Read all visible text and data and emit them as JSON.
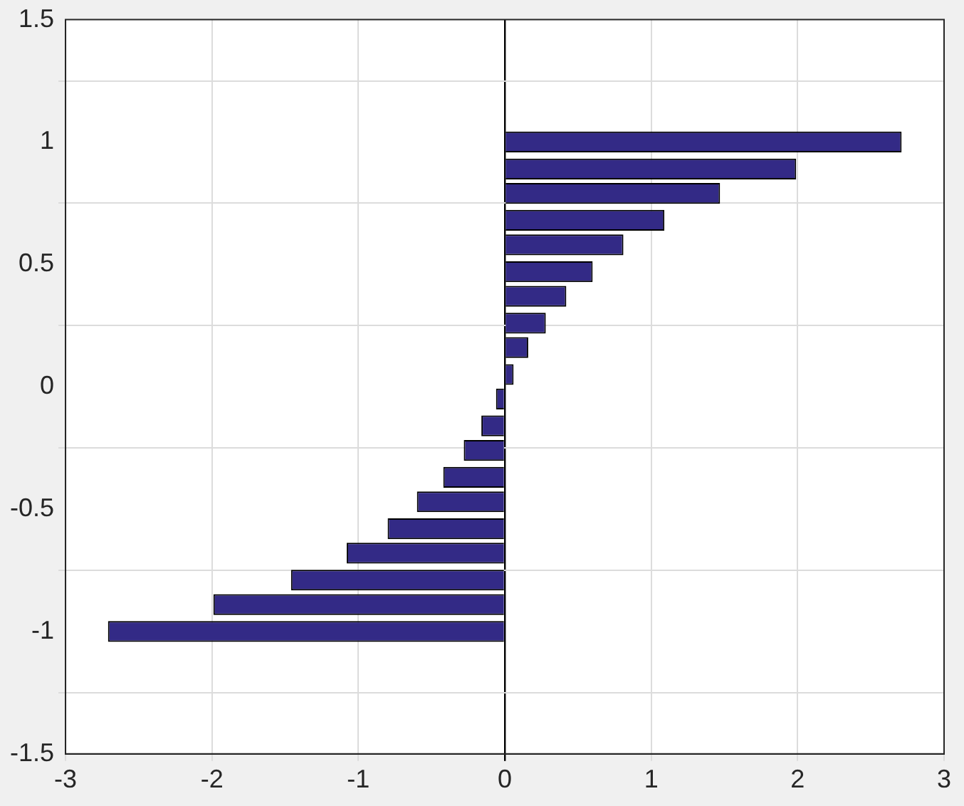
{
  "chart_data": {
    "type": "bar",
    "orientation": "horizontal",
    "x": [
      -1,
      -0.89,
      -0.79,
      -0.68,
      -0.58,
      -0.47,
      -0.37,
      -0.26,
      -0.16,
      -0.05,
      0.05,
      0.16,
      0.26,
      0.37,
      0.47,
      0.58,
      0.68,
      0.79,
      0.89,
      1
    ],
    "values": [
      -2.71,
      -1.99,
      -1.46,
      -1.08,
      -0.8,
      -0.6,
      -0.42,
      -0.28,
      -0.16,
      -0.06,
      0.06,
      0.16,
      0.28,
      0.42,
      0.6,
      0.81,
      1.09,
      1.47,
      1.99,
      2.71
    ],
    "color": "#332a86",
    "xlim": [
      -3,
      3
    ],
    "xticks": [
      -3,
      -2,
      -1,
      0,
      1,
      2,
      3
    ],
    "ylim": [
      -1.5,
      1.5
    ],
    "yticks": [
      -1.5,
      -1,
      -0.5,
      0,
      0.5,
      1,
      1.5
    ],
    "grid": true,
    "legend": false
  }
}
